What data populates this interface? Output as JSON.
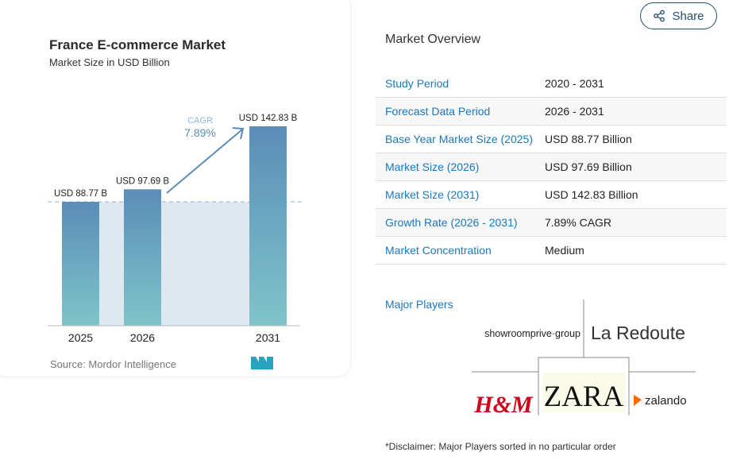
{
  "chart_data": {
    "type": "bar",
    "title": "France E-commerce Market",
    "subtitle": "Market Size in USD Billion",
    "categories": [
      "2025",
      "2026",
      "2031"
    ],
    "values": [
      88.77,
      97.69,
      142.83
    ],
    "data_labels": [
      "USD 88.77 B",
      "USD 97.69 B",
      "USD 142.83 B"
    ],
    "annotation": {
      "label": "CAGR",
      "value": "7.89%"
    },
    "ylim": [
      0,
      150
    ],
    "source": "Source:  Mordor Intelligence",
    "colors": {
      "bar_top": "#5b8db8",
      "bar_bottom": "#7fc4c9",
      "shade": "#dfe8f0",
      "accent": "#5b8db8"
    }
  },
  "share": {
    "label": "Share"
  },
  "overview": {
    "title": "Market Overview",
    "rows": [
      {
        "label": "Study Period",
        "value": "2020 - 2031"
      },
      {
        "label": "Forecast Data Period",
        "value": "2026 - 2031"
      },
      {
        "label": "Base Year Market Size (2025)",
        "value": "USD 88.77 Billion"
      },
      {
        "label": "Market Size (2026)",
        "value": "USD 97.69 Billion"
      },
      {
        "label": "Market Size (2031)",
        "value": "USD 142.83 Billion"
      },
      {
        "label": "Growth Rate (2026 - 2031)",
        "value": "7.89% CAGR"
      },
      {
        "label": "Market Concentration",
        "value": "Medium"
      }
    ],
    "major_players_label": "Major Players",
    "players": [
      "showroomprive·group",
      "La Redoute",
      "H&M",
      "ZARA",
      "zalando"
    ],
    "disclaimer": "*Disclaimer: Major Players sorted in no particular order"
  }
}
